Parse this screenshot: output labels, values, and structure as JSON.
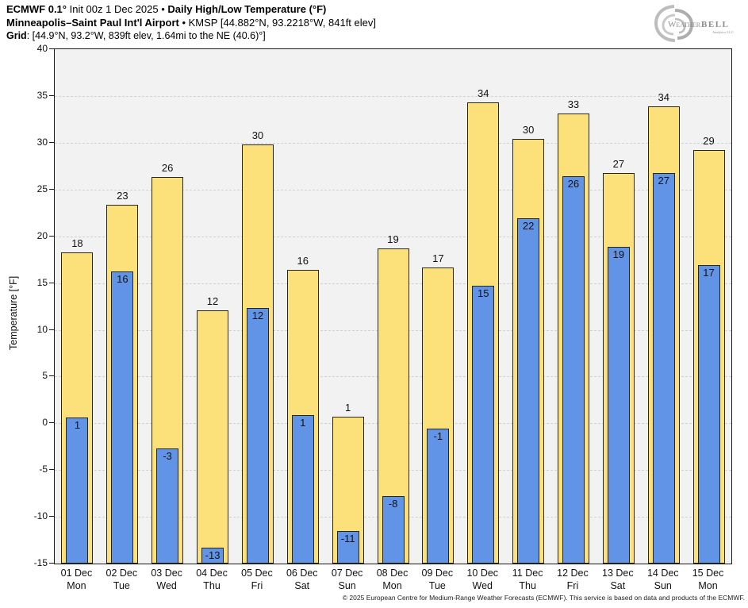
{
  "header": {
    "line1": [
      {
        "text": "ECMWF 0.1°",
        "bold": true
      },
      {
        "text": " Init 00z 1 Dec 2025 • ",
        "bold": false
      },
      {
        "text": "Daily High/Low Temperature (°F)",
        "bold": true
      }
    ],
    "line2": [
      {
        "text": "Minneapolis–Saint Paul Int'l Airport",
        "bold": true
      },
      {
        "text": " • KMSP [44.882°N, 93.2218°W, 841ft elev]",
        "bold": false
      }
    ],
    "line3": [
      {
        "text": "Grid",
        "bold": true
      },
      {
        "text": ": [44.9°N, 93.2°W, 839ft elev, 1.64mi to the NE (40.6)°]",
        "bold": false
      }
    ]
  },
  "logo": {
    "brand_weather": "Weather",
    "brand_bell": "BELL",
    "subtext": "Analytics LLC"
  },
  "chart_data": {
    "type": "bar",
    "title": "ECMWF 0.1° Init 00z 1 Dec 2025 • Daily High/Low Temperature (°F)",
    "station": "Minneapolis–Saint Paul Int'l Airport (KMSP)",
    "ylabel": "Temperature [°F]",
    "ylim": [
      -15,
      40
    ],
    "ytick_step": 5,
    "grid": true,
    "legend_position": "none",
    "categories": [
      {
        "date": "01 Dec",
        "day": "Mon"
      },
      {
        "date": "02 Dec",
        "day": "Tue"
      },
      {
        "date": "03 Dec",
        "day": "Wed"
      },
      {
        "date": "04 Dec",
        "day": "Thu"
      },
      {
        "date": "05 Dec",
        "day": "Fri"
      },
      {
        "date": "06 Dec",
        "day": "Sat"
      },
      {
        "date": "07 Dec",
        "day": "Sun"
      },
      {
        "date": "08 Dec",
        "day": "Mon"
      },
      {
        "date": "09 Dec",
        "day": "Tue"
      },
      {
        "date": "10 Dec",
        "day": "Wed"
      },
      {
        "date": "11 Dec",
        "day": "Thu"
      },
      {
        "date": "12 Dec",
        "day": "Fri"
      },
      {
        "date": "13 Dec",
        "day": "Sat"
      },
      {
        "date": "14 Dec",
        "day": "Sun"
      },
      {
        "date": "15 Dec",
        "day": "Mon"
      }
    ],
    "series": [
      {
        "name": "High",
        "color": "#fce07a",
        "values": [
          18,
          23,
          26,
          12,
          30,
          16,
          1,
          19,
          17,
          34,
          30,
          33,
          27,
          34,
          29
        ],
        "values_exact": [
          18.3,
          23.4,
          26.3,
          12.1,
          29.8,
          16.4,
          0.7,
          18.7,
          16.7,
          34.3,
          30.4,
          33.1,
          26.8,
          33.9,
          29.2
        ]
      },
      {
        "name": "Low",
        "color": "#6194e6",
        "values": [
          1,
          16,
          -3,
          -13,
          12,
          1,
          -11,
          -8,
          -1,
          15,
          22,
          26,
          19,
          27,
          17
        ],
        "values_exact": [
          0.6,
          16.2,
          -2.7,
          -13.3,
          12.3,
          0.9,
          -11.5,
          -7.8,
          -0.6,
          14.7,
          21.9,
          26.4,
          18.9,
          26.8,
          16.9
        ]
      }
    ]
  },
  "footer": {
    "copyright": "© 2025 European Centre for Medium-Range Weather Forecasts (ECMWF). This service is based on data and products of the ECMWF."
  }
}
